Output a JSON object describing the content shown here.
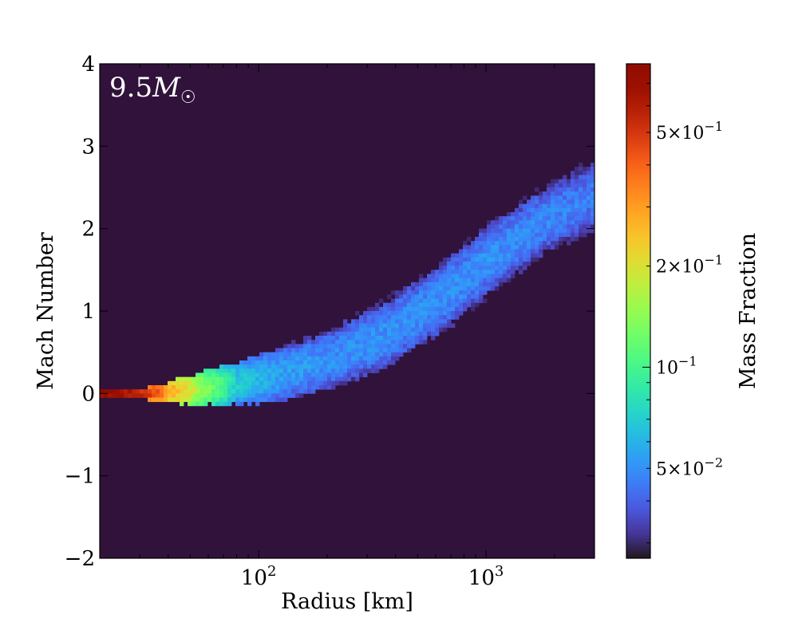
{
  "chart_data": {
    "type": "heatmap",
    "title": "",
    "xlabel": "Radius [km]",
    "ylabel": "Mach Number",
    "xscale": "log",
    "xlim": [
      20,
      3000
    ],
    "ylim": [
      -2,
      4
    ],
    "annotation": "9.5M☉",
    "x_ticks": [
      {
        "value": 100,
        "base": "10",
        "exp": "2"
      },
      {
        "value": 1000,
        "base": "10",
        "exp": "3"
      }
    ],
    "y_ticks": [
      {
        "value": -2,
        "label": "−2"
      },
      {
        "value": -1,
        "label": "−1"
      },
      {
        "value": 0,
        "label": "0"
      },
      {
        "value": 1,
        "label": "1"
      },
      {
        "value": 2,
        "label": "2"
      },
      {
        "value": 3,
        "label": "3"
      },
      {
        "value": 4,
        "label": "4"
      }
    ],
    "background_color": "#30123b",
    "colormap": "turbo",
    "colorbar": {
      "label": "Mass Fraction",
      "scale": "log",
      "range": [
        0.027,
        0.8
      ],
      "ticks": [
        {
          "value": 0.05,
          "mantissa": "5",
          "exp": "−2"
        },
        {
          "value": 0.1,
          "mantissa": "",
          "exp": "−1"
        },
        {
          "value": 0.2,
          "mantissa": "2",
          "exp": "−1"
        },
        {
          "value": 0.5,
          "mantissa": "5",
          "exp": "−1"
        }
      ]
    },
    "band": {
      "description": "distribution ridge: mach number center and half-width vs radius",
      "points": [
        {
          "r": 20,
          "center": 0.0,
          "halfwidth": 0.06,
          "mass": 0.78
        },
        {
          "r": 30,
          "center": 0.0,
          "halfwidth": 0.06,
          "mass": 0.6
        },
        {
          "r": 40,
          "center": 0.02,
          "halfwidth": 0.12,
          "mass": 0.3
        },
        {
          "r": 55,
          "center": 0.05,
          "halfwidth": 0.2,
          "mass": 0.15
        },
        {
          "r": 80,
          "center": 0.12,
          "halfwidth": 0.26,
          "mass": 0.07
        },
        {
          "r": 120,
          "center": 0.22,
          "halfwidth": 0.32,
          "mass": 0.055
        },
        {
          "r": 200,
          "center": 0.4,
          "halfwidth": 0.36,
          "mass": 0.05
        },
        {
          "r": 350,
          "center": 0.7,
          "halfwidth": 0.4,
          "mass": 0.05
        },
        {
          "r": 600,
          "center": 1.1,
          "halfwidth": 0.42,
          "mass": 0.05
        },
        {
          "r": 1000,
          "center": 1.6,
          "halfwidth": 0.42,
          "mass": 0.05
        },
        {
          "r": 1800,
          "center": 2.1,
          "halfwidth": 0.4,
          "mass": 0.048
        },
        {
          "r": 3000,
          "center": 2.4,
          "halfwidth": 0.42,
          "mass": 0.045
        }
      ]
    }
  }
}
